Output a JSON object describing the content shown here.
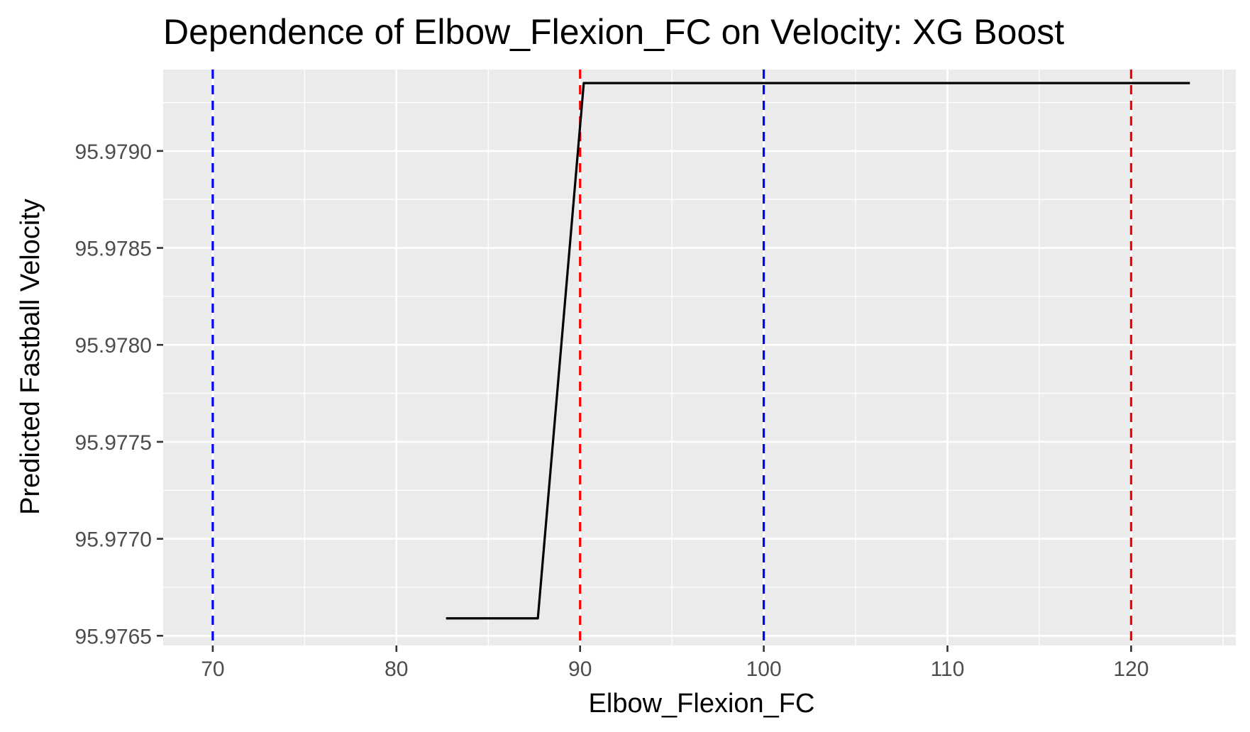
{
  "chart_data": {
    "type": "line",
    "title": "Dependence of Elbow_Flexion_FC on Velocity: XG Boost",
    "xlabel": "Elbow_Flexion_FC",
    "ylabel": "Predicted Fastball Velocity",
    "xlim": [
      67.3,
      125.7
    ],
    "ylim": [
      95.97645,
      95.97942
    ],
    "x_ticks": [
      70,
      80,
      90,
      100,
      110,
      120
    ],
    "x_tick_labels": [
      "70",
      "80",
      "90",
      "100",
      "110",
      "120"
    ],
    "x_minor_ticks": [
      75,
      85,
      95,
      105,
      115,
      125
    ],
    "y_ticks": [
      95.9765,
      95.977,
      95.9775,
      95.978,
      95.9785,
      95.979
    ],
    "y_tick_labels": [
      "95.9765",
      "95.9770",
      "95.9775",
      "95.9780",
      "95.9785",
      "95.9790"
    ],
    "y_minor_ticks": [
      95.97675,
      95.97725,
      95.97775,
      95.97825,
      95.97875,
      95.97925
    ],
    "grid": true,
    "series": [
      {
        "x": [
          82.7,
          87.7,
          90.2,
          123.2
        ],
        "y": [
          95.97659,
          95.97659,
          95.97935,
          95.97935
        ],
        "color": "#000000"
      }
    ],
    "vlines": [
      {
        "x": 70,
        "color": "#0000ff",
        "style": "dashed"
      },
      {
        "x": 90,
        "color": "#ff0000",
        "style": "dashed"
      },
      {
        "x": 100,
        "color": "#0000ff",
        "style": "dashed"
      },
      {
        "x": 120,
        "color": "#ff0000",
        "style": "dashed"
      }
    ],
    "panel_background": "#ebebeb",
    "grid_color": "#ffffff"
  }
}
